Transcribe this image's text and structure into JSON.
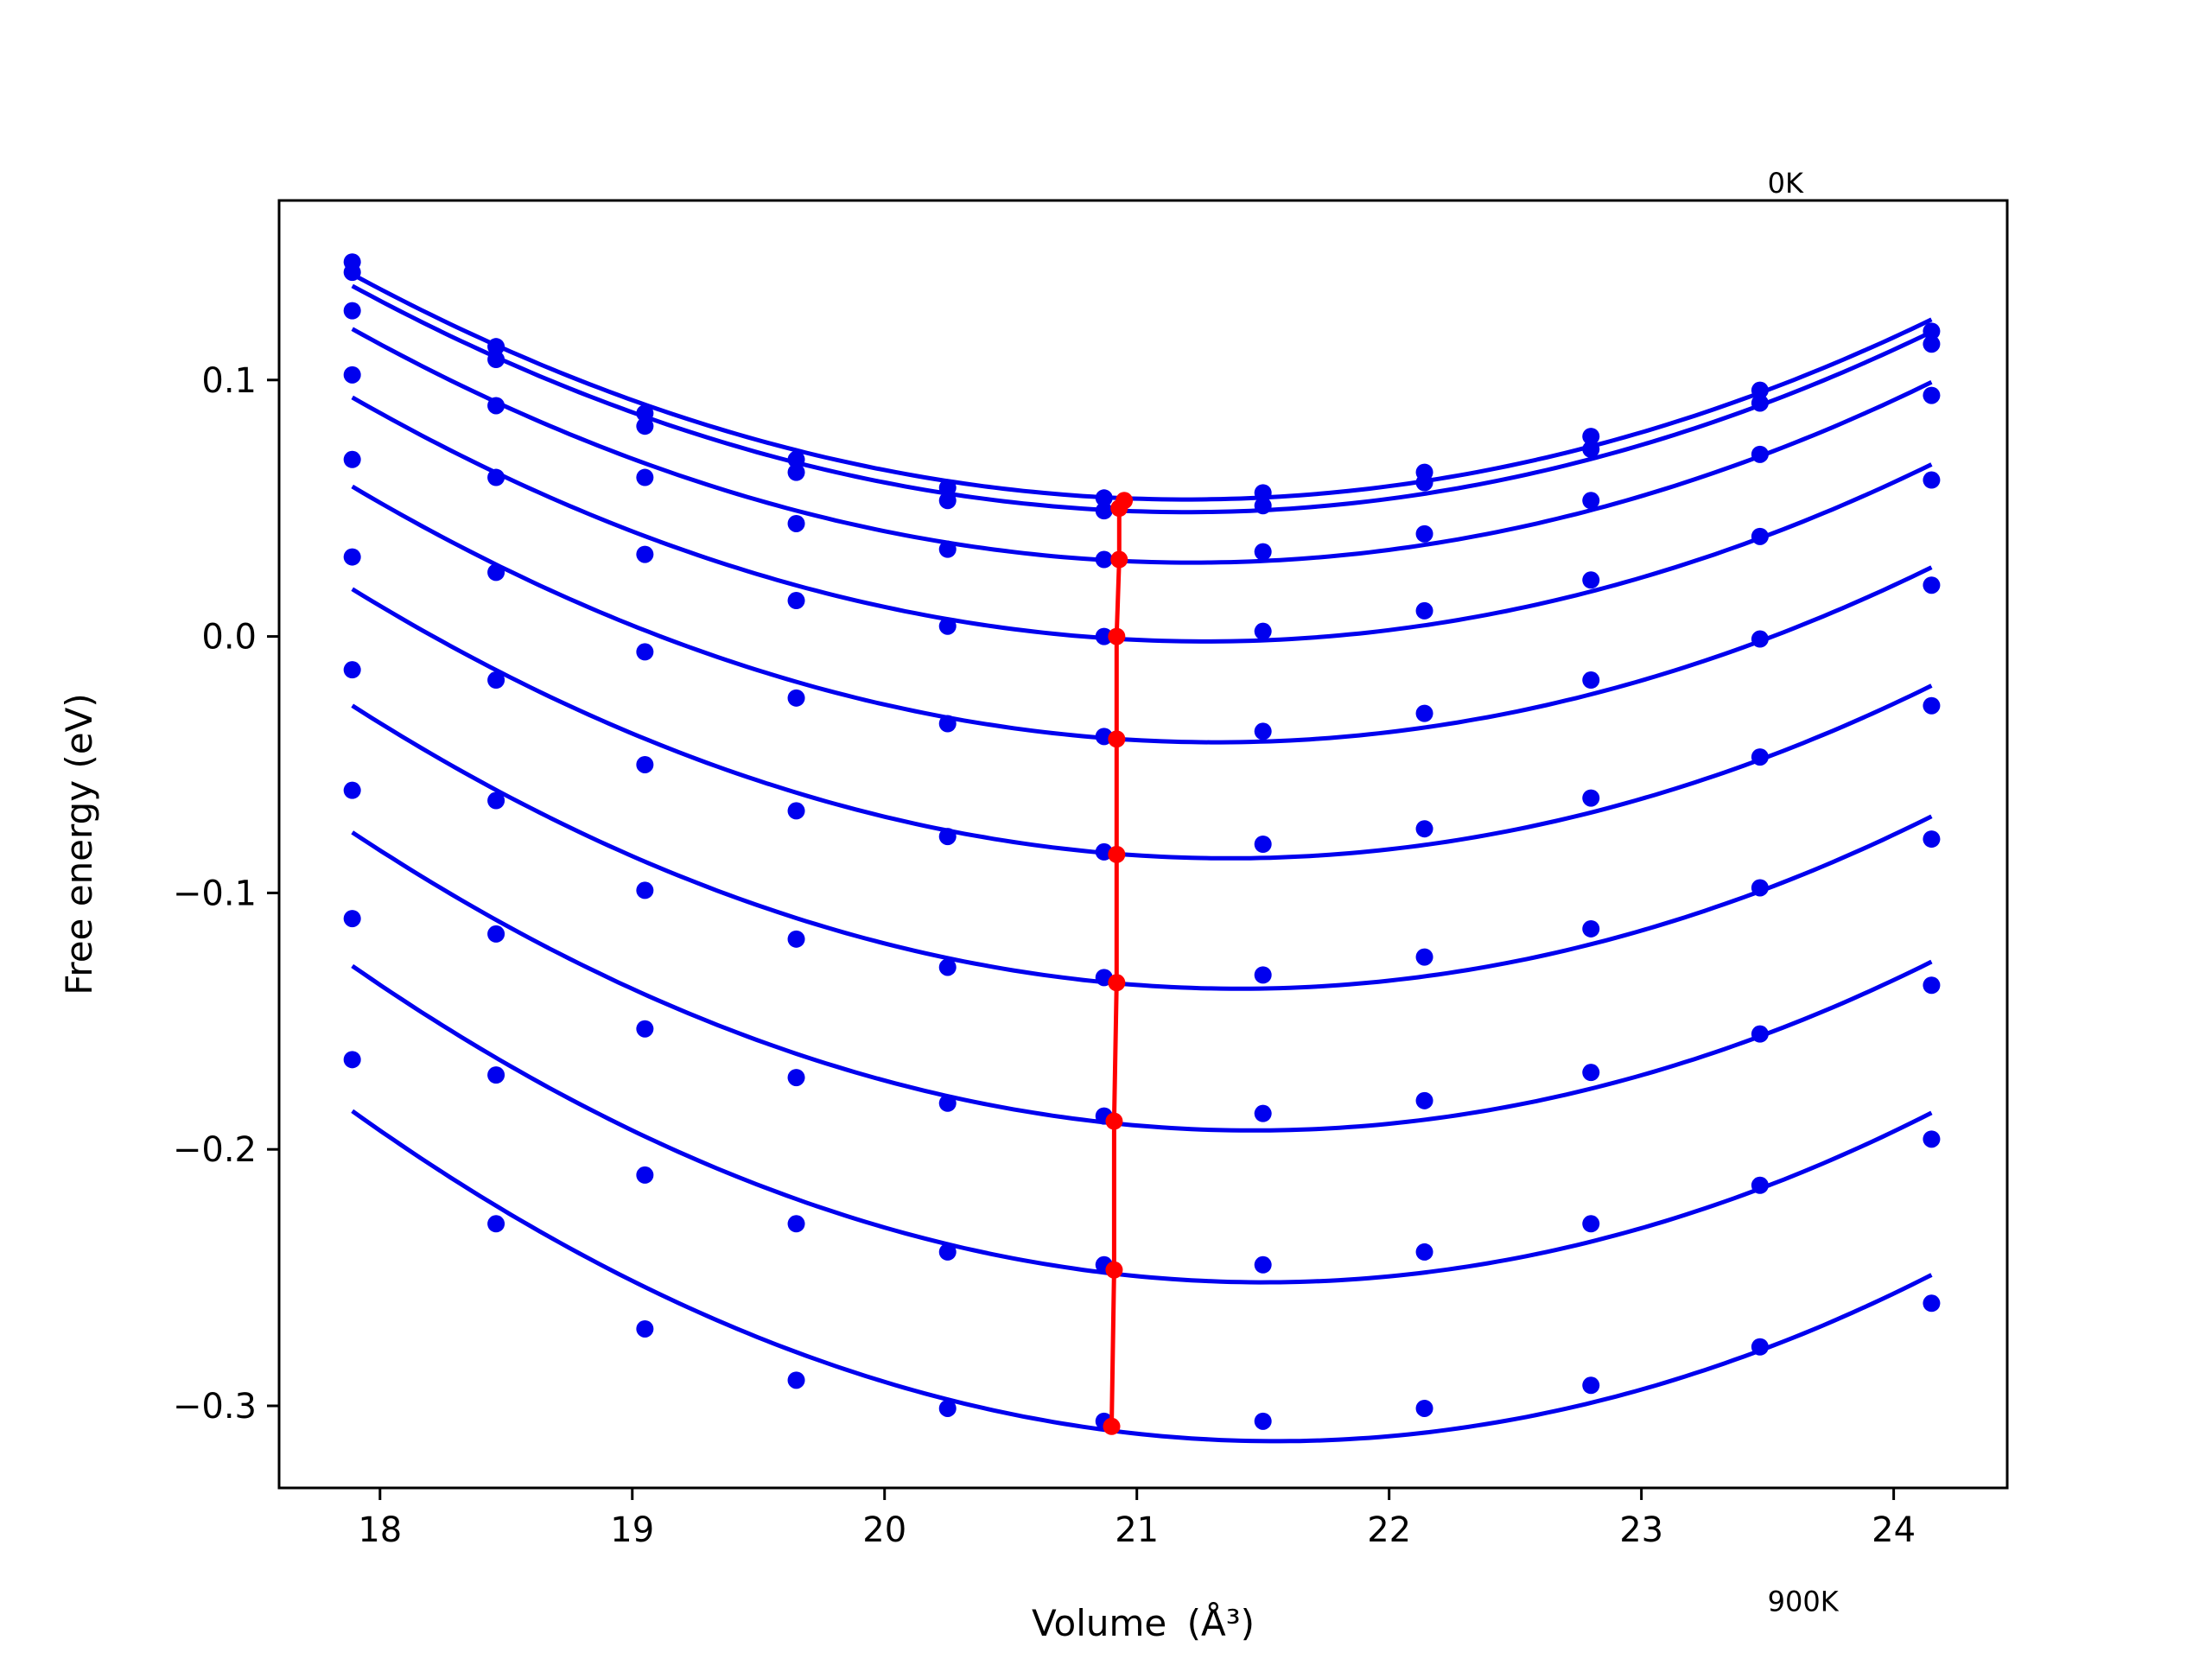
{
  "chart_data": {
    "type": "line",
    "title": "",
    "xlabel": "Volume",
    "xlabel_unit": "(Å³)",
    "ylabel": "Free energy (eV)",
    "xlim": [
      17.6,
      24.45
    ],
    "ylim": [
      -0.332,
      0.17
    ],
    "xticks": [
      18,
      19,
      20,
      21,
      22,
      23,
      24
    ],
    "yticks": [
      -0.3,
      -0.2,
      -0.1,
      0.0,
      0.1
    ],
    "ytick_labels": [
      "−0.3",
      "−0.2",
      "−0.1",
      "0.0",
      "0.1"
    ],
    "grid": false,
    "annotations": [
      {
        "text": "0K",
        "x": 23.5,
        "y": 0.173
      },
      {
        "text": "900K",
        "x": 23.5,
        "y": -0.38
      }
    ],
    "volumes": [
      17.89,
      18.46,
      19.05,
      19.65,
      20.25,
      20.87,
      21.5,
      22.14,
      22.8,
      23.47,
      24.15
    ],
    "series": [
      {
        "values": [
          0.146,
          0.113,
          0.087,
          0.069,
          0.058,
          0.054,
          0.056,
          0.064,
          0.078,
          0.096,
          0.119
        ],
        "fit_min": [
          20.95,
          0.053
        ]
      },
      {
        "values": [
          0.142,
          0.108,
          0.082,
          0.064,
          0.053,
          0.049,
          0.051,
          0.06,
          0.073,
          0.091,
          0.114
        ],
        "fit_min": [
          20.93,
          0.05
        ]
      },
      {
        "values": [
          0.127,
          0.09,
          0.062,
          0.044,
          0.034,
          0.03,
          0.033,
          0.04,
          0.053,
          0.071,
          0.094
        ],
        "fit_min": [
          20.93,
          0.03
        ]
      },
      {
        "values": [
          0.102,
          0.062,
          0.032,
          0.014,
          0.004,
          0.0,
          0.002,
          0.01,
          0.022,
          0.039,
          0.061
        ],
        "fit_min": [
          20.92,
          0.0
        ]
      },
      {
        "values": [
          0.069,
          0.025,
          -0.006,
          -0.024,
          -0.034,
          -0.039,
          -0.037,
          -0.03,
          -0.017,
          -0.001,
          0.02
        ],
        "fit_min": [
          20.92,
          -0.04
        ]
      },
      {
        "values": [
          0.031,
          -0.017,
          -0.05,
          -0.068,
          -0.078,
          -0.084,
          -0.081,
          -0.075,
          -0.063,
          -0.047,
          -0.027
        ],
        "fit_min": [
          20.92,
          -0.085
        ]
      },
      {
        "values": [
          -0.013,
          -0.064,
          -0.099,
          -0.118,
          -0.129,
          -0.133,
          -0.132,
          -0.125,
          -0.114,
          -0.098,
          -0.079
        ],
        "fit_min": [
          20.92,
          -0.135
        ]
      },
      {
        "values": [
          -0.06,
          -0.116,
          -0.153,
          -0.172,
          -0.182,
          -0.187,
          -0.186,
          -0.181,
          -0.17,
          -0.155,
          -0.136
        ],
        "fit_min": [
          20.91,
          -0.189
        ]
      },
      {
        "values": [
          -0.11,
          -0.171,
          -0.21,
          -0.229,
          -0.24,
          -0.245,
          -0.245,
          -0.24,
          -0.229,
          -0.214,
          -0.196
        ],
        "fit_min": [
          20.91,
          -0.247
        ]
      },
      {
        "values": [
          -0.165,
          -0.229,
          -0.27,
          -0.29,
          -0.301,
          -0.306,
          -0.306,
          -0.301,
          -0.292,
          -0.277,
          -0.26
        ],
        "fit_min": [
          20.9,
          -0.308
        ]
      }
    ],
    "colors": {
      "series": "#0000ee",
      "minimum_line": "#ff0000",
      "axes": "#000000"
    }
  }
}
